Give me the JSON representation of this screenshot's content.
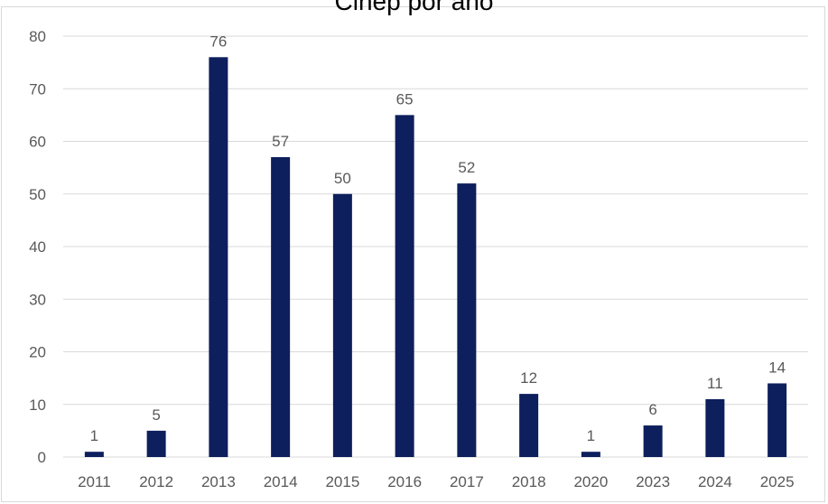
{
  "chart_data": {
    "type": "bar",
    "title": "Cinep por año",
    "xlabel": "",
    "ylabel": "",
    "categories": [
      "2011",
      "2012",
      "2013",
      "2014",
      "2015",
      "2016",
      "2017",
      "2018",
      "2020",
      "2023",
      "2024",
      "2025"
    ],
    "values": [
      1,
      5,
      76,
      57,
      50,
      65,
      52,
      12,
      1,
      6,
      11,
      14
    ],
    "ylim": [
      0,
      80
    ],
    "yticks": [
      0,
      10,
      20,
      30,
      40,
      50,
      60,
      70,
      80
    ],
    "grid": true,
    "legend": "none",
    "bar_color": "#0d1f5c",
    "grid_color": "#d9d9d9"
  }
}
